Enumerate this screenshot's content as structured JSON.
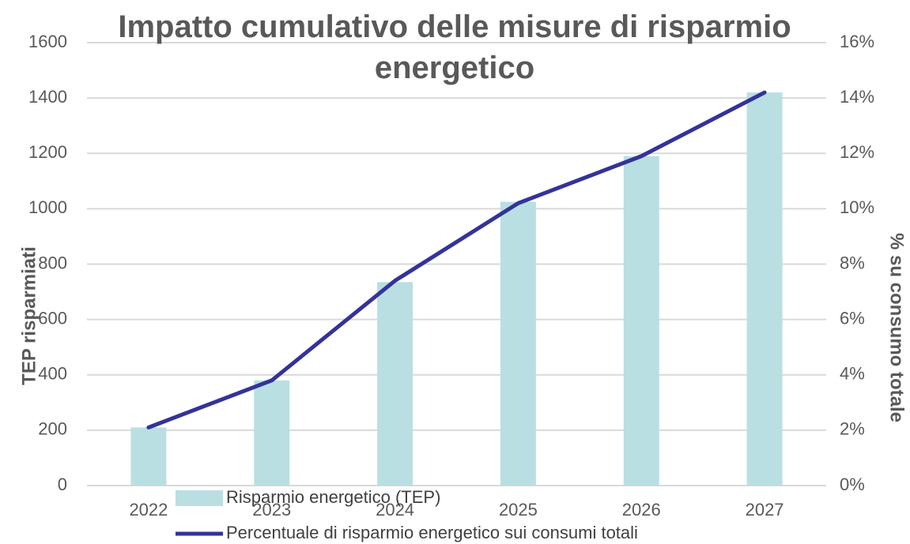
{
  "chart_data": {
    "type": "bar_line",
    "title": "Impatto cumulativo delle misure di risparmio energetico",
    "y_label": "TEP risparmiati",
    "y2_label": "% su consumo totale",
    "categories": [
      "2022",
      "2023",
      "2024",
      "2025",
      "2026",
      "2027"
    ],
    "series": [
      {
        "name": "Risparmio energetico (TEP)",
        "type": "bar",
        "color": "#b9dfe2",
        "values": [
          210,
          380,
          735,
          1025,
          1190,
          1420
        ]
      },
      {
        "name": "Percentuale di risparmio energetico sui consumi totali",
        "type": "line",
        "axis": "y2",
        "color": "#333399",
        "values": [
          2.1,
          3.8,
          7.4,
          10.2,
          11.9,
          14.2
        ]
      }
    ],
    "ylim": [
      0,
      1600
    ],
    "yticks": [
      0,
      200,
      400,
      600,
      800,
      1000,
      1200,
      1400,
      1600
    ],
    "y2lim": [
      0,
      16
    ],
    "y2ticks": [
      {
        "value": 0,
        "label": "0%"
      },
      {
        "value": 2,
        "label": "2%"
      },
      {
        "value": 4,
        "label": "4%"
      },
      {
        "value": 6,
        "label": "6%"
      },
      {
        "value": 8,
        "label": "8%"
      },
      {
        "value": 10,
        "label": "10%"
      },
      {
        "value": 12,
        "label": "12%"
      },
      {
        "value": 14,
        "label": "14%"
      },
      {
        "value": 16,
        "label": "16%"
      }
    ],
    "grid": true
  }
}
